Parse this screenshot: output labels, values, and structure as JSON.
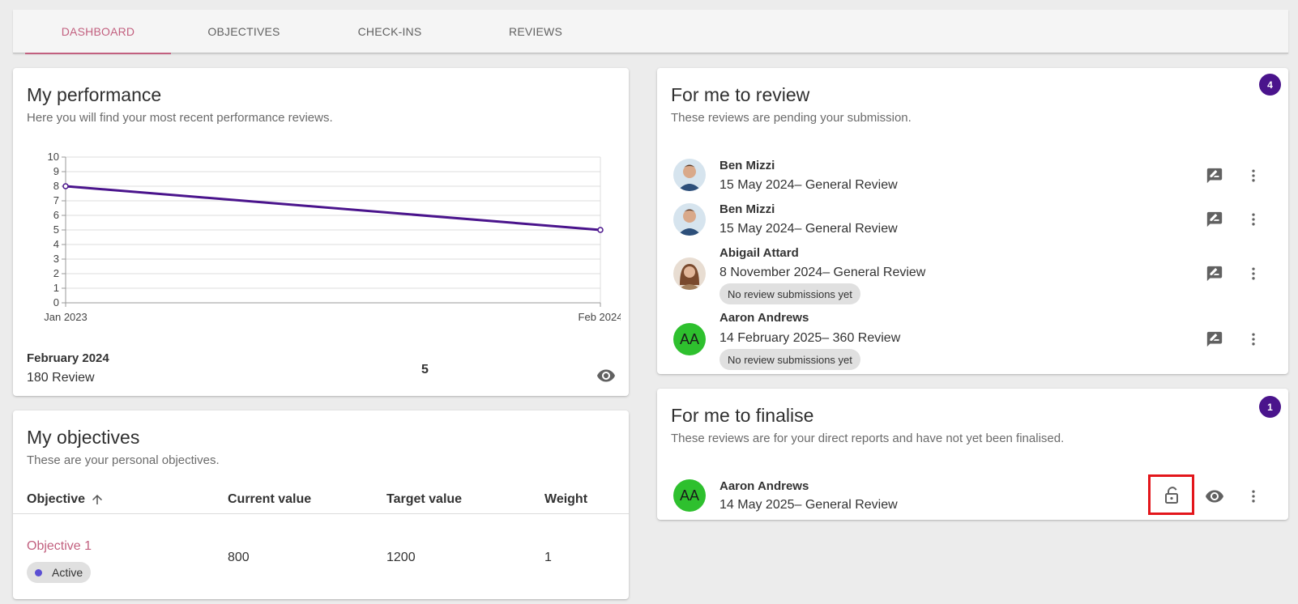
{
  "tabs": [
    {
      "label": "DASHBOARD",
      "active": true
    },
    {
      "label": "OBJECTIVES",
      "active": false
    },
    {
      "label": "CHECK-INS",
      "active": false
    },
    {
      "label": "REVIEWS",
      "active": false
    }
  ],
  "performance": {
    "title": "My performance",
    "subtitle": "Here you will find your most recent performance reviews.",
    "latest_label": "February 2024",
    "latest_type": "180 Review",
    "latest_score": "5",
    "view_icon": "eye-icon"
  },
  "chart_data": {
    "type": "line",
    "title": "",
    "xlabel": "",
    "ylabel": "",
    "x": [
      "Jan 2023",
      "Feb 2024"
    ],
    "series": [
      {
        "values": [
          8,
          5
        ],
        "color": "#4a148c"
      }
    ],
    "ylim": [
      0,
      10
    ],
    "yticks": [
      "0",
      "1",
      "2",
      "3",
      "4",
      "5",
      "6",
      "7",
      "8",
      "9",
      "10"
    ],
    "grid": true,
    "legend": "none"
  },
  "objectives": {
    "title": "My objectives",
    "subtitle": "These are your personal objectives.",
    "headers": {
      "objective": "Objective",
      "current": "Current value",
      "target": "Target value",
      "weight": "Weight"
    },
    "sort_icon": "arrow-up-icon",
    "rows": [
      {
        "name": "Objective 1",
        "status": "Active",
        "current": "800",
        "target": "1200",
        "weight": "1"
      }
    ]
  },
  "review": {
    "title": "For me to review",
    "subtitle": "These reviews are pending your submission.",
    "count": "4",
    "items": [
      {
        "name": "Ben Mizzi",
        "detail": "15 May 2024– General Review",
        "note": "",
        "avatar": "photo-male"
      },
      {
        "name": "Ben Mizzi",
        "detail": "15 May 2024– General Review",
        "note": "",
        "avatar": "photo-male"
      },
      {
        "name": "Abigail Attard",
        "detail": "8 November 2024– General Review",
        "note": "No review submissions yet",
        "avatar": "photo-female"
      },
      {
        "name": "Aaron Andrews",
        "detail": "14 February 2025– 360 Review",
        "note": "No review submissions yet",
        "avatar": "AA"
      }
    ]
  },
  "finalise": {
    "title": "For me to finalise",
    "subtitle": "These reviews are for your direct reports and have not yet been finalised.",
    "count": "1",
    "items": [
      {
        "name": "Aaron Andrews",
        "detail": "14 May 2025– General Review",
        "avatar": "AA"
      }
    ]
  },
  "colors": {
    "accent": "#c2607f",
    "badge": "#4a148c",
    "avatar_green": "#2ec02e",
    "highlight": "#e3161b"
  }
}
